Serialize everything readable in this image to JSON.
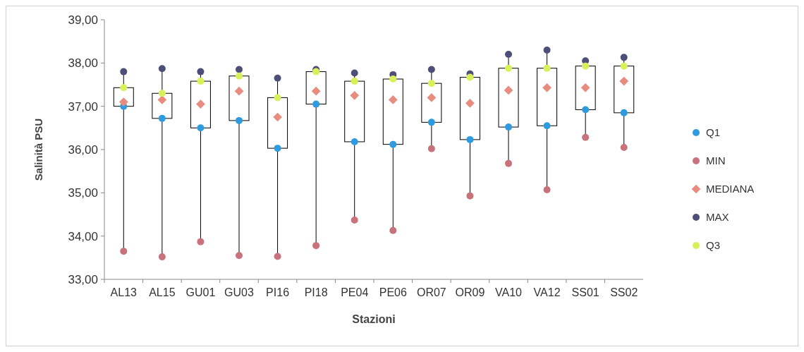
{
  "chart_data": {
    "type": "box",
    "xlabel": "Stazioni",
    "ylabel": "Salinità PSU",
    "categories": [
      "AL13",
      "AL15",
      "GU01",
      "GU03",
      "PI16",
      "PI18",
      "PE04",
      "PE06",
      "OR07",
      "OR09",
      "VA10",
      "VA12",
      "SS01",
      "SS02"
    ],
    "boxes": [
      {
        "low": 33.65,
        "q1": 37.0,
        "q3": 37.43,
        "high": 37.8
      },
      {
        "low": 33.52,
        "q1": 36.72,
        "q3": 37.3,
        "high": 37.87
      },
      {
        "low": 33.87,
        "q1": 36.5,
        "q3": 37.58,
        "high": 37.8
      },
      {
        "low": 33.55,
        "q1": 36.67,
        "q3": 37.7,
        "high": 37.85
      },
      {
        "low": 33.53,
        "q1": 36.03,
        "q3": 37.2,
        "high": 37.65
      },
      {
        "low": 33.78,
        "q1": 37.05,
        "q3": 37.8,
        "high": 37.85
      },
      {
        "low": 34.37,
        "q1": 36.18,
        "q3": 37.58,
        "high": 37.77
      },
      {
        "low": 34.13,
        "q1": 36.12,
        "q3": 37.63,
        "high": 37.73
      },
      {
        "low": 36.02,
        "q1": 36.63,
        "q3": 37.53,
        "high": 37.85
      },
      {
        "low": 34.93,
        "q1": 36.23,
        "q3": 37.67,
        "high": 37.75
      },
      {
        "low": 35.68,
        "q1": 36.52,
        "q3": 37.88,
        "high": 38.2
      },
      {
        "low": 35.07,
        "q1": 36.55,
        "q3": 37.88,
        "high": 38.3
      },
      {
        "low": 36.28,
        "q1": 36.92,
        "q3": 37.93,
        "high": 38.05
      },
      {
        "low": 36.05,
        "q1": 36.85,
        "q3": 37.93,
        "high": 38.13
      }
    ],
    "series": [
      {
        "type": "scatter",
        "name": "Q1",
        "color": "#2e9be0",
        "marker": "circle",
        "values": [
          37.0,
          36.72,
          36.5,
          36.67,
          36.03,
          37.05,
          36.18,
          36.12,
          36.63,
          36.23,
          36.52,
          36.55,
          36.92,
          36.85
        ]
      },
      {
        "type": "scatter",
        "name": "MIN",
        "color": "#c9727c",
        "marker": "circle",
        "values": [
          33.65,
          33.52,
          33.87,
          33.55,
          33.53,
          33.78,
          34.37,
          34.13,
          36.02,
          34.93,
          35.68,
          35.07,
          36.28,
          36.05
        ]
      },
      {
        "type": "scatter",
        "name": "MEDIANA",
        "color": "#e98c80",
        "marker": "diamond",
        "values": [
          37.1,
          37.15,
          37.05,
          37.35,
          36.75,
          37.35,
          37.25,
          37.15,
          37.2,
          37.07,
          37.37,
          37.43,
          37.43,
          37.58
        ]
      },
      {
        "type": "scatter",
        "name": "MAX",
        "color": "#4e4f78",
        "marker": "circle",
        "values": [
          37.8,
          37.87,
          37.8,
          37.85,
          37.65,
          37.85,
          37.77,
          37.73,
          37.85,
          37.75,
          38.2,
          38.3,
          38.05,
          38.13
        ]
      },
      {
        "type": "scatter",
        "name": "Q3",
        "color": "#d8f05a",
        "marker": "circle",
        "values": [
          37.43,
          37.3,
          37.58,
          37.7,
          37.2,
          37.8,
          37.58,
          37.63,
          37.53,
          37.67,
          37.88,
          37.88,
          37.93,
          37.93
        ]
      }
    ],
    "ylim": [
      33,
      39
    ],
    "yticks": [
      {
        "value": 33,
        "label": "33,00"
      },
      {
        "value": 34,
        "label": "34,00"
      },
      {
        "value": 35,
        "label": "35,00"
      },
      {
        "value": 36,
        "label": "36,00"
      },
      {
        "value": 37,
        "label": "37,00"
      },
      {
        "value": 38,
        "label": "38,00"
      },
      {
        "value": 39,
        "label": "39,00"
      }
    ],
    "grid": false,
    "legend": "right"
  }
}
